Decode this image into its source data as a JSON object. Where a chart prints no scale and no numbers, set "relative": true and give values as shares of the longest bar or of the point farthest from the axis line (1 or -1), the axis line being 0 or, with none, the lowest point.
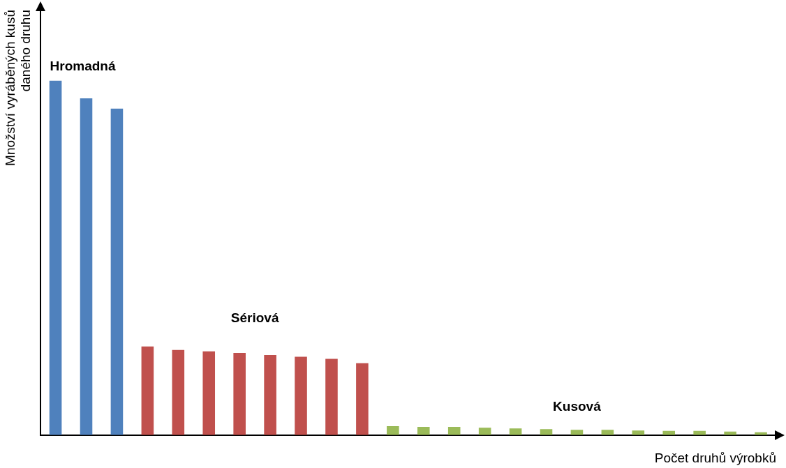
{
  "chart_data": {
    "type": "bar",
    "relative": true,
    "xlabel": "Počet druhů výrobků",
    "ylabel": "Množství vyráběných kusů daného druhu",
    "legend": false,
    "grid": false,
    "categories": [
      null,
      null,
      null,
      null,
      null,
      null,
      null,
      null,
      null,
      null,
      null,
      null,
      null,
      null,
      null,
      null,
      null,
      null,
      null,
      null,
      null,
      null,
      null,
      null
    ],
    "values": [
      1,
      0.95,
      0.921,
      0.25,
      0.24,
      0.236,
      0.232,
      0.226,
      0.221,
      0.215,
      0.203,
      0.025,
      0.023,
      0.023,
      0.021,
      0.019,
      0.017,
      0.015,
      0.015,
      0.013,
      0.012,
      0.012,
      0.01,
      0.008
    ],
    "colors": [
      "#4f81bd",
      "#4f81bd",
      "#4f81bd",
      "#c0504d",
      "#c0504d",
      "#c0504d",
      "#c0504d",
      "#c0504d",
      "#c0504d",
      "#c0504d",
      "#c0504d",
      "#9bbb59",
      "#9bbb59",
      "#9bbb59",
      "#9bbb59",
      "#9bbb59",
      "#9bbb59",
      "#9bbb59",
      "#9bbb59",
      "#9bbb59",
      "#9bbb59",
      "#9bbb59",
      "#9bbb59",
      "#9bbb59"
    ],
    "annotations": [
      "Hromadná",
      "Sériová",
      "Kusová"
    ]
  }
}
